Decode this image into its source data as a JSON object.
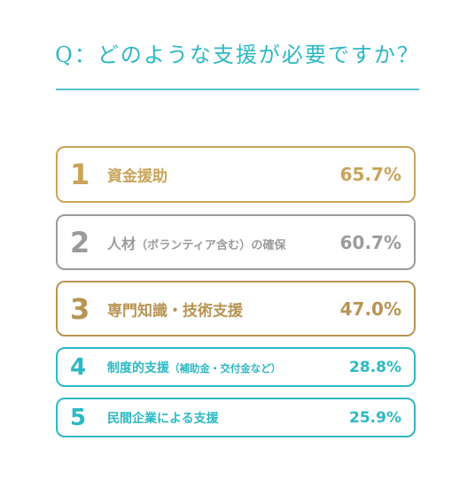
{
  "question": "Q：どのような支援が必要ですか？",
  "colors": {
    "gold": "#c9a45a",
    "gray": "#9b9b9b",
    "bronze": "#b89453",
    "teal": "#2db8c4"
  },
  "chart_data": {
    "type": "table",
    "rows": [
      {
        "rank": "1",
        "label": "資金援助",
        "sub": "",
        "value": 65.7,
        "value_label": "65.7%",
        "color": "#c9a45a"
      },
      {
        "rank": "2",
        "label": "人材",
        "sub": "（ボランティア含む）の確保",
        "value": 60.7,
        "value_label": "60.7%",
        "color": "#9b9b9b"
      },
      {
        "rank": "3",
        "label": "専門知識・技術支援",
        "sub": "",
        "value": 47.0,
        "value_label": "47.0%",
        "color": "#b89453"
      },
      {
        "rank": "4",
        "label": "制度的支援",
        "sub": "（補助金・交付金など）",
        "value": 28.8,
        "value_label": "28.8%",
        "color": "#2db8c4"
      },
      {
        "rank": "5",
        "label": "民間企業による支援",
        "sub": "",
        "value": 25.9,
        "value_label": "25.9%",
        "color": "#2db8c4"
      }
    ]
  }
}
